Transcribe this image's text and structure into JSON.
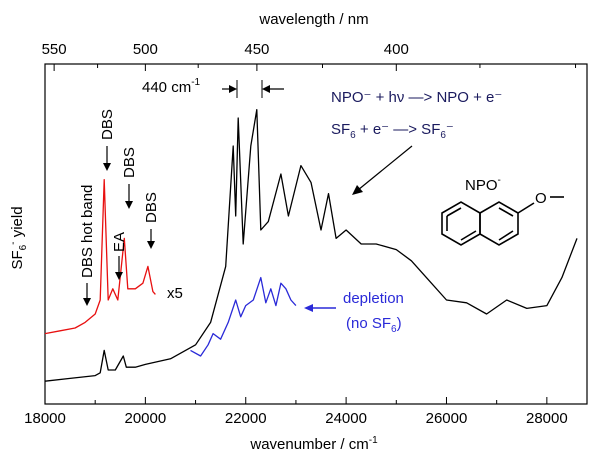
{
  "chart_data": {
    "type": "line",
    "xlabel": "wavenumber / cm",
    "xlabel_sup": "-1",
    "x2label": "wavelength / nm",
    "ylabel_main": "SF",
    "ylabel_sub": "6",
    "ylabel_sup": "-",
    "ylabel_rest": " yield",
    "xlim": [
      18000,
      28800
    ],
    "x_ticks": [
      "18000",
      "20000",
      "22000",
      "24000",
      "26000",
      "28000"
    ],
    "x_tick_values": [
      18000,
      20000,
      22000,
      24000,
      26000,
      28000
    ],
    "x2_ticks": [
      "550",
      "500",
      "450",
      "400"
    ],
    "x2_tick_values_nm": [
      550,
      500,
      450,
      400
    ],
    "series": [
      {
        "color": "#000000",
        "x": [
          18000,
          18500,
          19000,
          19100,
          19180,
          19260,
          19400,
          19560,
          19620,
          19800,
          20000,
          20500,
          21000,
          21300,
          21600,
          21750,
          21800,
          21850,
          21950,
          22100,
          22220,
          22300,
          22450,
          22700,
          22850,
          23100,
          23300,
          23500,
          23650,
          23800,
          24000,
          24300,
          24600,
          25000,
          25300,
          25600,
          26000,
          26400,
          26800,
          27200,
          27600,
          28000,
          28300,
          28600
        ],
        "values": [
          0.01,
          0.02,
          0.03,
          0.04,
          0.12,
          0.05,
          0.05,
          0.1,
          0.06,
          0.06,
          0.07,
          0.09,
          0.14,
          0.22,
          0.42,
          0.85,
          0.6,
          0.95,
          0.5,
          0.85,
          0.98,
          0.55,
          0.58,
          0.75,
          0.6,
          0.78,
          0.72,
          0.55,
          0.68,
          0.52,
          0.55,
          0.5,
          0.5,
          0.48,
          0.44,
          0.38,
          0.3,
          0.29,
          0.25,
          0.3,
          0.27,
          0.28,
          0.38,
          0.52
        ]
      },
      {
        "color": "#e81010",
        "label": "x5",
        "x": [
          18000,
          18300,
          18600,
          18800,
          19000,
          19100,
          19180,
          19260,
          19350,
          19450,
          19580,
          19650,
          19800,
          19950,
          20050,
          20150,
          20200
        ],
        "values": [
          0.18,
          0.19,
          0.2,
          0.22,
          0.25,
          0.3,
          0.73,
          0.3,
          0.34,
          0.3,
          0.52,
          0.34,
          0.34,
          0.36,
          0.42,
          0.33,
          0.32
        ]
      },
      {
        "color": "#2a2ad8",
        "x": [
          20900,
          21100,
          21250,
          21350,
          21500,
          21650,
          21800,
          21900,
          22000,
          22150,
          22300,
          22400,
          22500,
          22600,
          22700,
          22800,
          22900,
          23000
        ],
        "values": [
          0.12,
          0.1,
          0.14,
          0.18,
          0.16,
          0.22,
          0.3,
          0.24,
          0.28,
          0.3,
          0.38,
          0.29,
          0.34,
          0.28,
          0.36,
          0.34,
          0.3,
          0.28
        ]
      }
    ],
    "annotations": {
      "spacing": "440 cm",
      "spacing_sup": "-1",
      "dbs_hot": "DBS hot band",
      "dbs1": "DBS",
      "ea": "EA",
      "dbs2": "DBS",
      "dbs3": "DBS",
      "x5": "x5",
      "eq1": "NPO⁻ + hν —> NPO + e⁻",
      "eq2_a": "SF",
      "eq2_b": "6",
      "eq2_c": " + e⁻ —> SF",
      "eq2_d": "6",
      "eq2_e": "⁻",
      "molecule": "NPO",
      "molecule_sup": "-",
      "O_label": "O",
      "depletion1": "depletion",
      "depletion2": "(no SF",
      "depletion2_sub": "6",
      "depletion2_end": ")"
    }
  }
}
